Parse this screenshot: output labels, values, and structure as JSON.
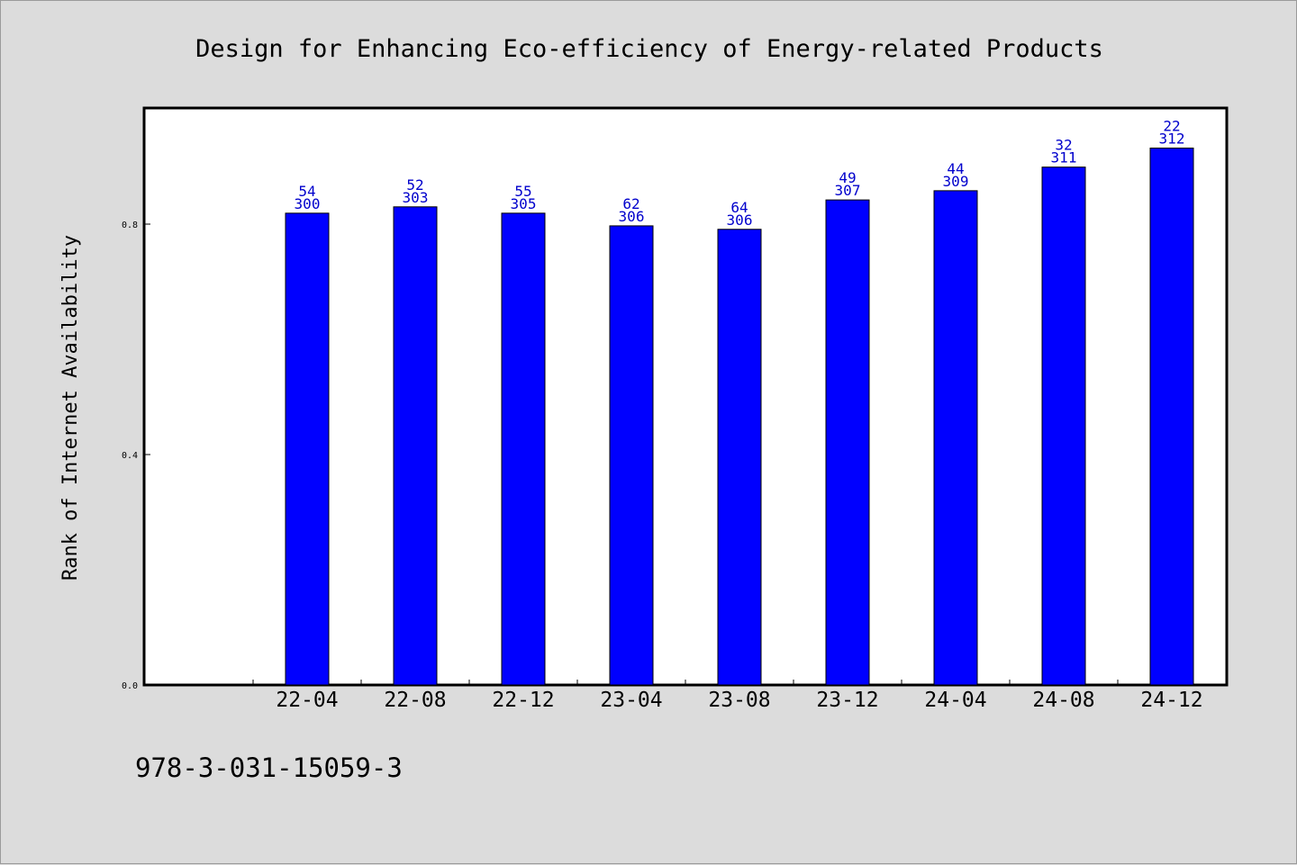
{
  "colors": {
    "background": "#dcdcdc",
    "plot_background": "#ffffff",
    "bar": "#0000ff",
    "bar_label": "#0000cc"
  },
  "footer": {
    "isbn": "978-3-031-15059-3"
  },
  "chart_data": {
    "type": "bar",
    "title": "Design for Enhancing Eco-efficiency of Energy-related Products",
    "xlabel": "",
    "ylabel": "Rank of Internet Availability",
    "ylim": [
      0,
      1.0
    ],
    "yticks": [
      0.0,
      0.4,
      0.8
    ],
    "ytick_labels": [
      "0.0",
      "0.4",
      "0.8"
    ],
    "grid": false,
    "legend": "none",
    "categories": [
      "22-04",
      "22-08",
      "22-12",
      "23-04",
      "23-08",
      "23-12",
      "24-04",
      "24-08",
      "24-12"
    ],
    "values": [
      0.819,
      0.83,
      0.819,
      0.797,
      0.791,
      0.842,
      0.858,
      0.899,
      0.932
    ],
    "label_top": [
      "54",
      "52",
      "55",
      "62",
      "64",
      "49",
      "44",
      "32",
      "22"
    ],
    "label_bottom": [
      "300",
      "303",
      "305",
      "306",
      "306",
      "307",
      "309",
      "311",
      "312"
    ]
  }
}
